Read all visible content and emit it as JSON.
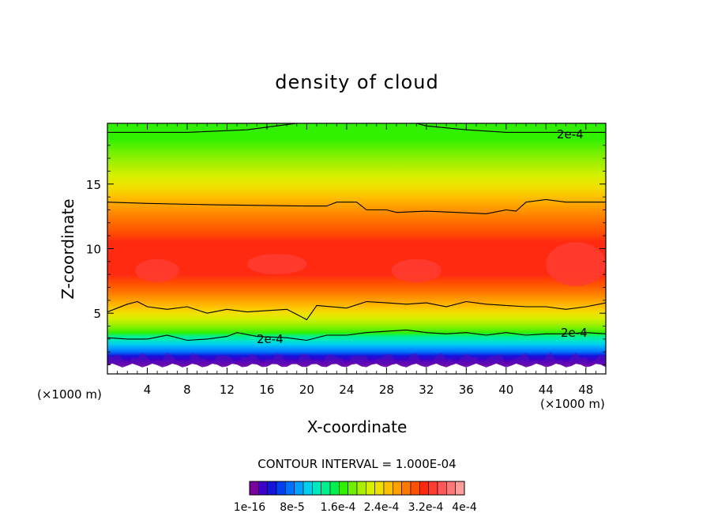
{
  "chart_data": {
    "type": "heatmap",
    "title": "density of cloud",
    "xlabel": "X-coordinate",
    "ylabel": "Z-coordinate",
    "x_unit": "(×1000 m)",
    "x_unit_right": "(×1000 m)",
    "xlim": [
      0,
      50
    ],
    "ylim": [
      0.3,
      19.7
    ],
    "x_ticks": [
      4,
      8,
      12,
      16,
      20,
      24,
      28,
      32,
      36,
      40,
      44,
      48
    ],
    "y_ticks": [
      5,
      10,
      15
    ],
    "contour_interval_text": "CONTOUR INTERVAL = 1.000E-04",
    "contour_level": "2e-4",
    "contour_labels": [
      "2e-4",
      "2e-4",
      "2e-4"
    ],
    "colorbar_labels": [
      "1e-16",
      "8e-5",
      "1.6e-4",
      "2.4e-4",
      "3.2e-4",
      "4e-4"
    ],
    "colorbar_colors": [
      "#7b00a0",
      "#3c00c8",
      "#1414dc",
      "#0040f0",
      "#0070ff",
      "#00a0ff",
      "#00d0f0",
      "#00e8c0",
      "#00f090",
      "#00f050",
      "#30f000",
      "#70f000",
      "#a8f000",
      "#d8f000",
      "#f0e000",
      "#ffc000",
      "#ffa000",
      "#ff7800",
      "#ff5000",
      "#ff2a10",
      "#ff3c30",
      "#ff5858",
      "#ff7878",
      "#ff9c9c"
    ],
    "vertical_profile": [
      {
        "z": 0.3,
        "color": "#ffffff"
      },
      {
        "z": 1.0,
        "color": "#7b00a0"
      },
      {
        "z": 1.4,
        "color": "#3c00c8"
      },
      {
        "z": 1.7,
        "color": "#1414dc"
      },
      {
        "z": 2.0,
        "color": "#0070ff"
      },
      {
        "z": 2.3,
        "color": "#00a0ff"
      },
      {
        "z": 2.6,
        "color": "#00d0f0"
      },
      {
        "z": 2.9,
        "color": "#00e8c0"
      },
      {
        "z": 3.2,
        "color": "#00f090"
      },
      {
        "z": 3.5,
        "color": "#30f000"
      },
      {
        "z": 3.8,
        "color": "#70f000"
      },
      {
        "z": 4.2,
        "color": "#a8f000"
      },
      {
        "z": 4.6,
        "color": "#d8f000"
      },
      {
        "z": 5.0,
        "color": "#f0e000"
      },
      {
        "z": 5.5,
        "color": "#ffc000"
      },
      {
        "z": 6.0,
        "color": "#ffa000"
      },
      {
        "z": 6.6,
        "color": "#ff7800"
      },
      {
        "z": 7.3,
        "color": "#ff5000"
      },
      {
        "z": 8.0,
        "color": "#ff2a10"
      },
      {
        "z": 10.5,
        "color": "#ff2a10"
      },
      {
        "z": 11.3,
        "color": "#ff5000"
      },
      {
        "z": 12.3,
        "color": "#ff7800"
      },
      {
        "z": 13.3,
        "color": "#ffa000"
      },
      {
        "z": 14.0,
        "color": "#ffc000"
      },
      {
        "z": 14.8,
        "color": "#f0e000"
      },
      {
        "z": 15.6,
        "color": "#d8f000"
      },
      {
        "z": 16.5,
        "color": "#a8f000"
      },
      {
        "z": 17.5,
        "color": "#70f000"
      },
      {
        "z": 18.5,
        "color": "#30f000"
      },
      {
        "z": 19.7,
        "color": "#30f000"
      }
    ],
    "contours": [
      {
        "name": "upper",
        "points": [
          [
            0,
            19.0
          ],
          [
            8,
            19.0
          ],
          [
            14,
            19.2
          ],
          [
            18,
            19.6
          ],
          [
            19,
            19.7
          ],
          [
            31,
            19.7
          ],
          [
            32,
            19.5
          ],
          [
            36,
            19.2
          ],
          [
            40,
            19.0
          ],
          [
            50,
            19.0
          ]
        ]
      },
      {
        "name": "mid-upper",
        "points": [
          [
            0,
            13.6
          ],
          [
            4,
            13.5
          ],
          [
            10,
            13.4
          ],
          [
            20,
            13.3
          ],
          [
            22,
            13.3
          ],
          [
            23,
            13.6
          ],
          [
            25,
            13.6
          ],
          [
            26,
            13.0
          ],
          [
            28,
            13.0
          ],
          [
            29,
            12.8
          ],
          [
            32,
            12.9
          ],
          [
            35,
            12.8
          ],
          [
            38,
            12.7
          ],
          [
            40,
            13.0
          ],
          [
            41,
            12.9
          ],
          [
            42,
            13.6
          ],
          [
            44,
            13.8
          ],
          [
            46,
            13.6
          ],
          [
            50,
            13.6
          ]
        ]
      },
      {
        "name": "mid-lower",
        "points": [
          [
            0,
            5.1
          ],
          [
            1,
            5.4
          ],
          [
            2,
            5.7
          ],
          [
            3,
            5.9
          ],
          [
            4,
            5.5
          ],
          [
            6,
            5.3
          ],
          [
            8,
            5.5
          ],
          [
            10,
            5.0
          ],
          [
            12,
            5.3
          ],
          [
            14,
            5.1
          ],
          [
            16,
            5.2
          ],
          [
            18,
            5.3
          ],
          [
            19,
            4.9
          ],
          [
            20,
            4.5
          ],
          [
            21,
            5.6
          ],
          [
            24,
            5.4
          ],
          [
            26,
            5.9
          ],
          [
            28,
            5.8
          ],
          [
            30,
            5.7
          ],
          [
            32,
            5.8
          ],
          [
            34,
            5.5
          ],
          [
            36,
            5.9
          ],
          [
            38,
            5.7
          ],
          [
            40,
            5.6
          ],
          [
            42,
            5.5
          ],
          [
            44,
            5.5
          ],
          [
            46,
            5.3
          ],
          [
            48,
            5.5
          ],
          [
            50,
            5.8
          ]
        ]
      },
      {
        "name": "lower",
        "points": [
          [
            0,
            3.1
          ],
          [
            2,
            3.0
          ],
          [
            4,
            3.0
          ],
          [
            6,
            3.3
          ],
          [
            8,
            2.9
          ],
          [
            10,
            3.0
          ],
          [
            12,
            3.2
          ],
          [
            13,
            3.5
          ],
          [
            15,
            3.2
          ],
          [
            18,
            3.1
          ],
          [
            20,
            2.9
          ],
          [
            22,
            3.3
          ],
          [
            24,
            3.3
          ],
          [
            26,
            3.5
          ],
          [
            28,
            3.6
          ],
          [
            30,
            3.7
          ],
          [
            32,
            3.5
          ],
          [
            34,
            3.4
          ],
          [
            36,
            3.5
          ],
          [
            38,
            3.3
          ],
          [
            40,
            3.5
          ],
          [
            42,
            3.3
          ],
          [
            44,
            3.4
          ],
          [
            46,
            3.4
          ],
          [
            48,
            3.5
          ],
          [
            50,
            3.4
          ]
        ]
      }
    ]
  }
}
